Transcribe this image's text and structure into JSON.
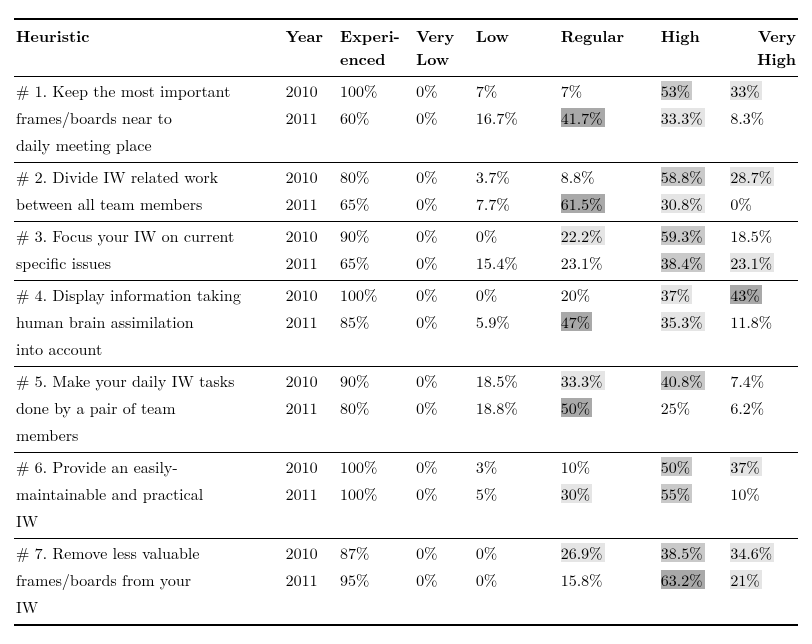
{
  "columns": {
    "heuristic": "Heuristic",
    "year": "Year",
    "experienced": "Experi-\nenced",
    "very_low": "Very\nLow",
    "low": "Low",
    "regular": "Regular",
    "high": "High",
    "very_high": "Very\nHigh"
  },
  "shade_colors": {
    "none": "#ffffff",
    "light": "#e5e5e5",
    "mid": "#c9c9c9",
    "dark": "#a9a9a9"
  },
  "heuristics": [
    {
      "label_lines": [
        "# 1. Keep the most important",
        "frames/boards near to",
        "daily meeting place"
      ],
      "rows": [
        {
          "year": "2010",
          "exp": "100%",
          "vlow": "0%",
          "low": "7%",
          "reg": "7%",
          "high": "53%",
          "vhigh": "33%",
          "low_shade": "none",
          "reg_shade": "none",
          "high_shade": "mid",
          "vhigh_shade": "light"
        },
        {
          "year": "2011",
          "exp": "60%",
          "vlow": "0%",
          "low": "16.7%",
          "reg": "41.7%",
          "high": "33.3%",
          "vhigh": "8.3%",
          "low_shade": "none",
          "reg_shade": "dark",
          "high_shade": "light",
          "vhigh_shade": "none"
        }
      ]
    },
    {
      "label_lines": [
        "# 2. Divide IW related work",
        "between all team members"
      ],
      "rows": [
        {
          "year": "2010",
          "exp": "80%",
          "vlow": "0%",
          "low": "3.7%",
          "reg": "8.8%",
          "high": "58.8%",
          "vhigh": "28.7%",
          "low_shade": "none",
          "reg_shade": "none",
          "high_shade": "mid",
          "vhigh_shade": "light"
        },
        {
          "year": "2011",
          "exp": "65%",
          "vlow": "0%",
          "low": "7.7%",
          "reg": "61.5%",
          "high": "30.8%",
          "vhigh": "0%",
          "low_shade": "none",
          "reg_shade": "dark",
          "high_shade": "light",
          "vhigh_shade": "none"
        }
      ]
    },
    {
      "label_lines": [
        "# 3. Focus your IW on current",
        "specific issues"
      ],
      "rows": [
        {
          "year": "2010",
          "exp": "90%",
          "vlow": "0%",
          "low": "0%",
          "reg": "22.2%",
          "high": "59.3%",
          "vhigh": "18.5%",
          "low_shade": "none",
          "reg_shade": "light",
          "high_shade": "mid",
          "vhigh_shade": "none"
        },
        {
          "year": "2011",
          "exp": "65%",
          "vlow": "0%",
          "low": "15.4%",
          "reg": "23.1%",
          "high": "38.4%",
          "vhigh": "23.1%",
          "low_shade": "none",
          "reg_shade": "none",
          "high_shade": "mid",
          "vhigh_shade": "light"
        }
      ]
    },
    {
      "label_lines": [
        "# 4. Display information taking",
        "human brain assimilation",
        "into account"
      ],
      "rows": [
        {
          "year": "2010",
          "exp": "100%",
          "vlow": "0%",
          "low": "0%",
          "reg": "20%",
          "high": "37%",
          "vhigh": "43%",
          "low_shade": "none",
          "reg_shade": "none",
          "high_shade": "light",
          "vhigh_shade": "dark"
        },
        {
          "year": "2011",
          "exp": "85%",
          "vlow": "0%",
          "low": "5.9%",
          "reg": "47%",
          "high": "35.3%",
          "vhigh": "11.8%",
          "low_shade": "none",
          "reg_shade": "dark",
          "high_shade": "light",
          "vhigh_shade": "none"
        }
      ]
    },
    {
      "label_lines": [
        "# 5. Make your daily IW tasks",
        "done by a pair of team",
        "members"
      ],
      "rows": [
        {
          "year": "2010",
          "exp": "90%",
          "vlow": "0%",
          "low": "18.5%",
          "reg": "33.3%",
          "high": "40.8%",
          "vhigh": "7.4%",
          "low_shade": "none",
          "reg_shade": "light",
          "high_shade": "mid",
          "vhigh_shade": "none"
        },
        {
          "year": "2011",
          "exp": "80%",
          "vlow": "0%",
          "low": "18.8%",
          "reg": "50%",
          "high": "25%",
          "vhigh": "6.2%",
          "low_shade": "none",
          "reg_shade": "dark",
          "high_shade": "none",
          "vhigh_shade": "none"
        }
      ]
    },
    {
      "label_lines": [
        "# 6. Provide an easily-",
        "maintainable and practical",
        "IW"
      ],
      "rows": [
        {
          "year": "2010",
          "exp": "100%",
          "vlow": "0%",
          "low": "3%",
          "reg": "10%",
          "high": "50%",
          "vhigh": "37%",
          "low_shade": "none",
          "reg_shade": "none",
          "high_shade": "mid",
          "vhigh_shade": "light"
        },
        {
          "year": "2011",
          "exp": "100%",
          "vlow": "0%",
          "low": "5%",
          "reg": "30%",
          "high": "55%",
          "vhigh": "10%",
          "low_shade": "none",
          "reg_shade": "light",
          "high_shade": "mid",
          "vhigh_shade": "none"
        }
      ]
    },
    {
      "label_lines": [
        "# 7. Remove less valuable",
        "frames/boards from your",
        "IW"
      ],
      "rows": [
        {
          "year": "2010",
          "exp": "87%",
          "vlow": "0%",
          "low": "0%",
          "reg": "26.9%",
          "high": "38.5%",
          "vhigh": "34.6%",
          "low_shade": "none",
          "reg_shade": "light",
          "high_shade": "mid",
          "vhigh_shade": "light"
        },
        {
          "year": "2011",
          "exp": "95%",
          "vlow": "0%",
          "low": "0%",
          "reg": "15.8%",
          "high": "63.2%",
          "vhigh": "21%",
          "low_shade": "none",
          "reg_shade": "none",
          "high_shade": "dark",
          "vhigh_shade": "light"
        }
      ]
    }
  ]
}
